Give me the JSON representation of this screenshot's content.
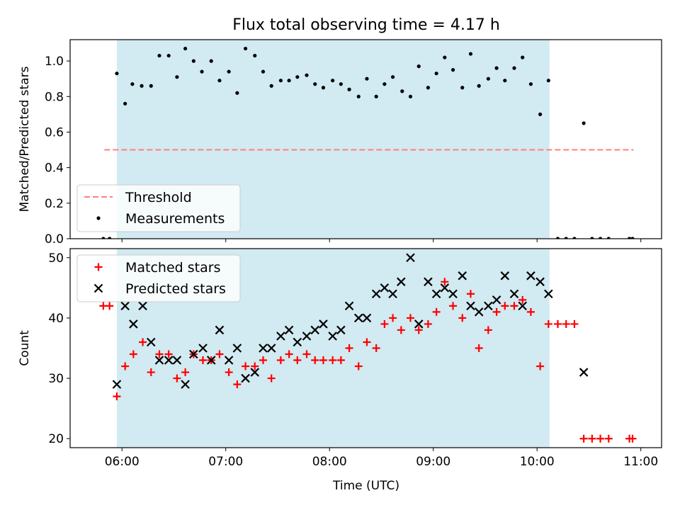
{
  "chart_data": {
    "title": "Flux total observing time = 4.17 h",
    "xlabel": "Time (UTC)",
    "x_ticks": [
      "06:00",
      "07:00",
      "08:00",
      "09:00",
      "10:00",
      "11:00"
    ],
    "x_tick_values": [
      6,
      7,
      8,
      9,
      10,
      11
    ],
    "xlim": [
      5.5,
      11.2
    ],
    "observing_span": [
      5.95,
      10.12
    ],
    "shade_color": "#add8e6",
    "panels": [
      {
        "type": "scatter",
        "ylabel": "Matched/Predicted stars",
        "ylim": [
          0,
          1.12
        ],
        "y_ticks": [
          "0.0",
          "0.2",
          "0.4",
          "0.6",
          "0.8",
          "1.0"
        ],
        "y_tick_values": [
          0,
          0.2,
          0.4,
          0.6,
          0.8,
          1.0
        ],
        "legend": "lower-left",
        "threshold": {
          "name": "Threshold",
          "value": 0.5,
          "x": [
            5.83,
            10.93
          ],
          "color": "#ff7f7f",
          "style": "dashed"
        },
        "series": [
          {
            "name": "Measurements",
            "marker": "dot",
            "color": "#000000",
            "x": [
              5.82,
              5.88,
              5.95,
              6.03,
              6.1,
              6.19,
              6.28,
              6.36,
              6.45,
              6.53,
              6.61,
              6.69,
              6.77,
              6.86,
              6.94,
              7.03,
              7.11,
              7.19,
              7.28,
              7.36,
              7.44,
              7.53,
              7.61,
              7.69,
              7.78,
              7.86,
              7.94,
              8.03,
              8.11,
              8.19,
              8.28,
              8.36,
              8.45,
              8.53,
              8.61,
              8.7,
              8.78,
              8.86,
              8.95,
              9.03,
              9.11,
              9.19,
              9.28,
              9.36,
              9.44,
              9.53,
              9.61,
              9.69,
              9.78,
              9.86,
              9.94,
              10.03,
              10.11,
              10.2,
              10.28,
              10.36,
              10.45,
              10.53,
              10.61,
              10.69,
              10.89,
              10.92
            ],
            "y": [
              0.0,
              0.0,
              0.93,
              0.76,
              0.87,
              0.86,
              0.86,
              1.03,
              1.03,
              0.91,
              1.07,
              1.0,
              0.94,
              1.0,
              0.89,
              0.94,
              0.82,
              1.07,
              1.03,
              0.94,
              0.86,
              0.89,
              0.89,
              0.91,
              0.92,
              0.87,
              0.85,
              0.89,
              0.87,
              0.84,
              0.8,
              0.9,
              0.8,
              0.87,
              0.91,
              0.83,
              0.8,
              0.97,
              0.85,
              0.93,
              1.02,
              0.95,
              0.85,
              1.04,
              0.86,
              0.9,
              0.96,
              0.89,
              0.96,
              1.02,
              0.87,
              0.7,
              0.89,
              0.0,
              0.0,
              0.0,
              0.65,
              0.0,
              0.0,
              0.0,
              0.0,
              0.0
            ]
          }
        ]
      },
      {
        "type": "scatter",
        "ylabel": "Count",
        "ylim": [
          18.5,
          51.5
        ],
        "y_ticks": [
          "20",
          "30",
          "40",
          "50"
        ],
        "y_tick_values": [
          20,
          30,
          40,
          50
        ],
        "legend": "upper-left",
        "series": [
          {
            "name": "Matched stars",
            "marker": "plus",
            "color": "#ff0000",
            "x": [
              5.82,
              5.88,
              5.95,
              6.03,
              6.11,
              6.2,
              6.28,
              6.36,
              6.45,
              6.53,
              6.61,
              6.69,
              6.78,
              6.86,
              6.94,
              7.03,
              7.11,
              7.19,
              7.28,
              7.36,
              7.44,
              7.53,
              7.61,
              7.69,
              7.78,
              7.86,
              7.94,
              8.03,
              8.11,
              8.19,
              8.28,
              8.36,
              8.45,
              8.53,
              8.61,
              8.69,
              8.78,
              8.86,
              8.95,
              9.03,
              9.11,
              9.19,
              9.28,
              9.36,
              9.44,
              9.53,
              9.61,
              9.69,
              9.78,
              9.86,
              9.94,
              10.03,
              10.11,
              10.2,
              10.28,
              10.36,
              10.45,
              10.53,
              10.61,
              10.69,
              10.89,
              10.92
            ],
            "y": [
              42,
              42,
              27,
              32,
              34,
              36,
              31,
              34,
              34,
              30,
              31,
              34,
              33,
              33,
              34,
              31,
              29,
              32,
              32,
              33,
              30,
              33,
              34,
              33,
              34,
              33,
              33,
              33,
              33,
              35,
              32,
              36,
              35,
              39,
              40,
              38,
              40,
              38,
              39,
              41,
              46,
              42,
              40,
              44,
              35,
              38,
              41,
              42,
              42,
              43,
              41,
              32,
              39,
              39,
              39,
              39,
              20,
              20,
              20,
              20,
              20,
              20
            ]
          },
          {
            "name": "Predicted stars",
            "marker": "x",
            "color": "#000000",
            "x": [
              5.95,
              6.03,
              6.11,
              6.2,
              6.28,
              6.36,
              6.45,
              6.53,
              6.61,
              6.69,
              6.78,
              6.86,
              6.94,
              7.03,
              7.11,
              7.19,
              7.28,
              7.36,
              7.44,
              7.53,
              7.61,
              7.69,
              7.78,
              7.86,
              7.94,
              8.03,
              8.11,
              8.19,
              8.28,
              8.36,
              8.45,
              8.53,
              8.61,
              8.69,
              8.78,
              8.86,
              8.95,
              9.03,
              9.11,
              9.19,
              9.28,
              9.36,
              9.44,
              9.53,
              9.61,
              9.69,
              9.78,
              9.86,
              9.94,
              10.03,
              10.11,
              10.45
            ],
            "y": [
              29,
              42,
              39,
              42,
              36,
              33,
              33,
              33,
              29,
              34,
              35,
              33,
              38,
              33,
              35,
              30,
              31,
              35,
              35,
              37,
              38,
              36,
              37,
              38,
              39,
              37,
              38,
              42,
              40,
              40,
              44,
              45,
              44,
              46,
              50,
              39,
              46,
              44,
              45,
              44,
              47,
              42,
              41,
              42,
              43,
              47,
              44,
              42,
              47,
              46,
              44,
              31
            ]
          }
        ]
      }
    ]
  }
}
